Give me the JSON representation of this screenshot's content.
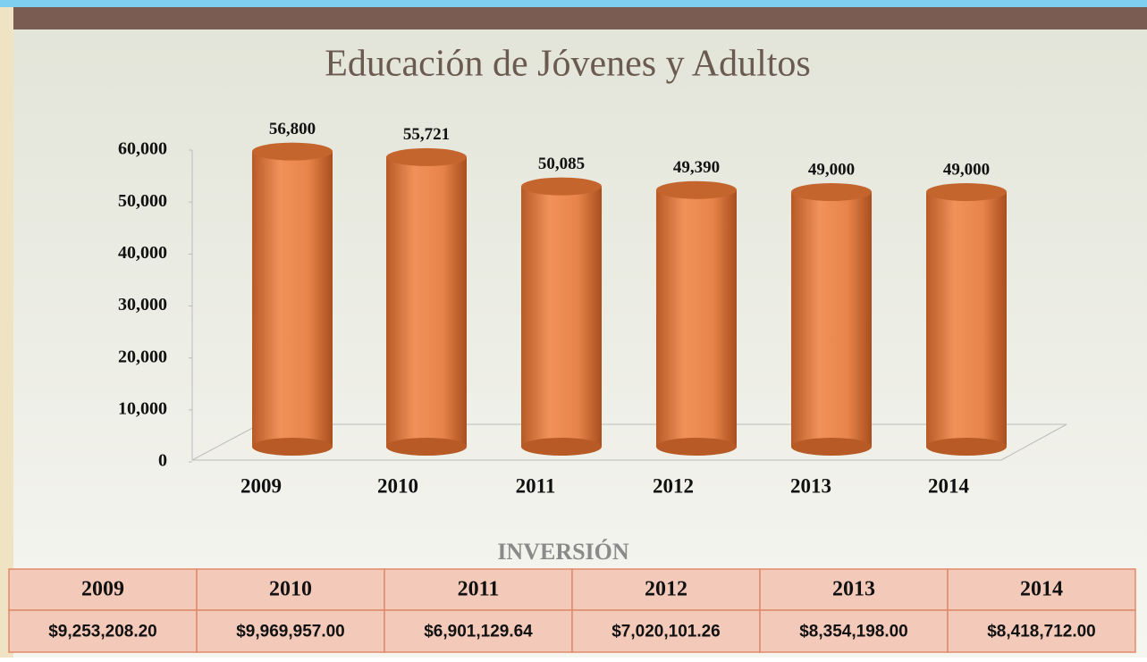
{
  "chart_data": {
    "type": "bar",
    "title": "Educación de Jóvenes y Adultos",
    "categories": [
      "2009",
      "2010",
      "2011",
      "2012",
      "2013",
      "2014"
    ],
    "values": [
      56800,
      55721,
      50085,
      49390,
      49000,
      49000
    ],
    "value_labels": [
      "56,800",
      "55,721",
      "50,085",
      "49,390",
      "49,000",
      "49,000"
    ],
    "color": "#e8844a",
    "ylim": [
      0,
      60000
    ],
    "yticks": [
      0,
      {
        "value": 10000,
        "label": "10,000"
      },
      {
        "value": 20000,
        "label": "20,000"
      },
      {
        "value": 30000,
        "label": "30,000"
      },
      {
        "value": 40000,
        "label": "40,000"
      },
      {
        "value": 50000,
        "label": "50,000"
      },
      {
        "value": 60000,
        "label": "60,000"
      }
    ]
  },
  "table": {
    "title": "INVERSIÓN",
    "header": [
      "2009",
      "2010",
      "2011",
      "2012",
      "2013",
      "2014"
    ],
    "rows": [
      [
        "$9,253,208.20",
        "$9,969,957.00",
        "$6,901,129.64",
        "$7,020,101.26",
        "$8,354,198.00",
        "$8,418,712.00"
      ]
    ]
  }
}
